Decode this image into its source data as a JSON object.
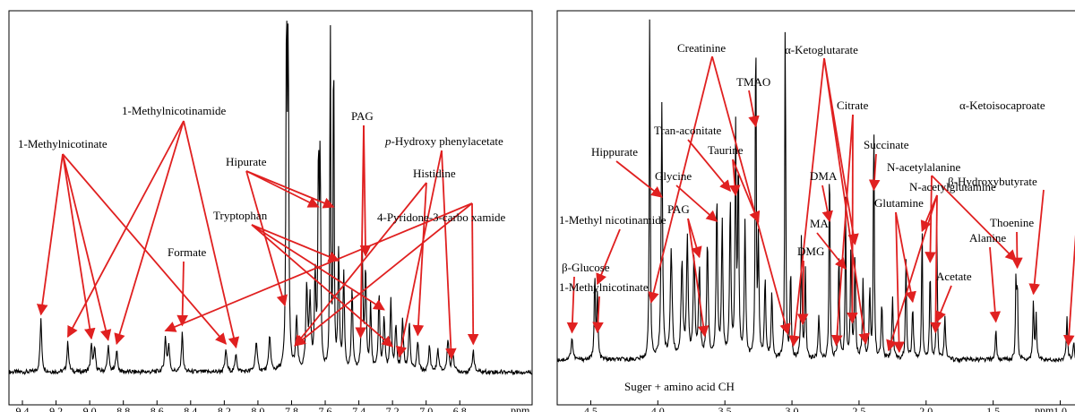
{
  "colors": {
    "spectrum": "#000000",
    "arrow": "#e02020",
    "brace": "#8b1a1a",
    "frame": "#000000"
  },
  "chart_data": [
    {
      "type": "line",
      "xlabel": "ppm",
      "xlim": [
        9.48,
        6.37
      ],
      "ticks": [
        "9.4",
        "9.2",
        "9.0",
        "8.8",
        "8.6",
        "8.4",
        "8.2",
        "8.0",
        "7.8",
        "7.6",
        "7.4",
        "7.2",
        "7.0",
        "6.8"
      ],
      "tick_values": [
        9.4,
        9.2,
        9.0,
        8.8,
        8.6,
        8.4,
        8.2,
        8.0,
        7.8,
        7.6,
        7.4,
        7.2,
        7.0,
        6.8
      ],
      "baseline": 0.035,
      "peaks": [
        [
          9.29,
          0.14,
          0.006
        ],
        [
          9.13,
          0.08,
          0.006
        ],
        [
          8.99,
          0.07,
          0.006
        ],
        [
          8.97,
          0.06,
          0.006
        ],
        [
          8.89,
          0.07,
          0.006
        ],
        [
          8.84,
          0.06,
          0.006
        ],
        [
          8.55,
          0.09,
          0.006
        ],
        [
          8.53,
          0.07,
          0.006
        ],
        [
          8.45,
          0.11,
          0.005
        ],
        [
          8.19,
          0.06,
          0.006
        ],
        [
          8.13,
          0.05,
          0.006
        ],
        [
          8.01,
          0.08,
          0.007
        ],
        [
          7.93,
          0.1,
          0.006
        ],
        [
          7.83,
          0.93,
          0.004
        ],
        [
          7.82,
          0.85,
          0.004
        ],
        [
          7.77,
          0.14,
          0.006
        ],
        [
          7.71,
          0.22,
          0.006
        ],
        [
          7.69,
          0.19,
          0.006
        ],
        [
          7.66,
          0.25,
          0.005
        ],
        [
          7.64,
          0.57,
          0.004
        ],
        [
          7.63,
          0.55,
          0.004
        ],
        [
          7.57,
          0.98,
          0.003
        ],
        [
          7.55,
          0.97,
          0.003
        ],
        [
          7.52,
          0.32,
          0.005
        ],
        [
          7.49,
          0.26,
          0.005
        ],
        [
          7.44,
          0.22,
          0.005
        ],
        [
          7.38,
          0.32,
          0.005
        ],
        [
          7.36,
          0.27,
          0.005
        ],
        [
          7.33,
          0.18,
          0.005
        ],
        [
          7.28,
          0.21,
          0.005
        ],
        [
          7.25,
          0.14,
          0.006
        ],
        [
          7.21,
          0.19,
          0.005
        ],
        [
          7.18,
          0.12,
          0.006
        ],
        [
          7.14,
          0.14,
          0.006
        ],
        [
          7.1,
          0.13,
          0.006
        ],
        [
          7.05,
          0.08,
          0.006
        ],
        [
          6.98,
          0.07,
          0.006
        ],
        [
          6.93,
          0.06,
          0.006
        ],
        [
          6.87,
          0.09,
          0.006
        ],
        [
          6.84,
          0.05,
          0.006
        ],
        [
          6.72,
          0.06,
          0.006
        ]
      ],
      "annotations": [
        {
          "text": "1-Methylnicotinate",
          "targets": [
            9.29,
            8.99,
            8.89,
            8.19
          ]
        },
        {
          "text": "1-Methylnicotinamide",
          "targets": [
            9.13,
            8.84,
            8.13
          ]
        },
        {
          "text": "Formate",
          "targets": [
            8.45
          ]
        },
        {
          "text": "Hipurate",
          "targets": [
            7.84,
            7.55,
            7.64
          ]
        },
        {
          "text": "Tryptophan",
          "targets": [
            7.52,
            7.25,
            7.2
          ]
        },
        {
          "text": "PAG",
          "targets": [
            7.36,
            7.39
          ]
        },
        {
          "text": "p-Hydroxy phenylacetate",
          "italic_prefix": "p",
          "rest": "-Hydroxy phenylacetate",
          "targets": [
            7.16,
            6.85
          ]
        },
        {
          "text": "Histidine",
          "targets": [
            7.78,
            7.05
          ]
        },
        {
          "text": "4-Pyridone-3-carbo xamide",
          "targets": [
            8.55,
            7.78,
            6.72
          ]
        }
      ]
    },
    {
      "type": "line",
      "xlabel": "ppm",
      "xlim": [
        4.75,
        0.85
      ],
      "ticks": [
        "4.5",
        "4.0",
        "3.5",
        "3.0",
        "2.5",
        "2.0",
        "1.5",
        "1.0"
      ],
      "tick_values": [
        4.5,
        4.0,
        3.5,
        3.0,
        2.5,
        2.0,
        1.5,
        1.0
      ],
      "baseline": 0.04,
      "peaks": [
        [
          4.64,
          0.06,
          0.008
        ],
        [
          4.47,
          0.24,
          0.005
        ],
        [
          4.45,
          0.18,
          0.005
        ],
        [
          4.06,
          1.0,
          0.004
        ],
        [
          3.97,
          0.71,
          0.006
        ],
        [
          3.9,
          0.3,
          0.008
        ],
        [
          3.82,
          0.26,
          0.008
        ],
        [
          3.78,
          0.33,
          0.007
        ],
        [
          3.73,
          0.29,
          0.007
        ],
        [
          3.69,
          0.25,
          0.007
        ],
        [
          3.63,
          0.32,
          0.007
        ],
        [
          3.56,
          0.45,
          0.006
        ],
        [
          3.52,
          0.38,
          0.006
        ],
        [
          3.46,
          0.43,
          0.006
        ],
        [
          3.42,
          0.62,
          0.005
        ],
        [
          3.4,
          0.55,
          0.005
        ],
        [
          3.35,
          0.38,
          0.006
        ],
        [
          3.27,
          1.0,
          0.004
        ],
        [
          3.25,
          0.32,
          0.005
        ],
        [
          3.2,
          0.22,
          0.006
        ],
        [
          3.15,
          0.18,
          0.006
        ],
        [
          3.05,
          1.0,
          0.004
        ],
        [
          3.01,
          0.25,
          0.005
        ],
        [
          2.93,
          0.33,
          0.005
        ],
        [
          2.9,
          0.25,
          0.005
        ],
        [
          2.8,
          0.12,
          0.006
        ],
        [
          2.72,
          0.6,
          0.004
        ],
        [
          2.65,
          0.3,
          0.005
        ],
        [
          2.6,
          0.45,
          0.004
        ],
        [
          2.56,
          0.32,
          0.005
        ],
        [
          2.53,
          0.29,
          0.005
        ],
        [
          2.47,
          0.22,
          0.006
        ],
        [
          2.42,
          0.2,
          0.005
        ],
        [
          2.39,
          0.72,
          0.004
        ],
        [
          2.33,
          0.15,
          0.006
        ],
        [
          2.25,
          0.17,
          0.006
        ],
        [
          2.15,
          0.27,
          0.005
        ],
        [
          2.1,
          0.14,
          0.006
        ],
        [
          2.03,
          0.39,
          0.004
        ],
        [
          1.97,
          0.25,
          0.005
        ],
        [
          1.92,
          0.4,
          0.004
        ],
        [
          1.86,
          0.12,
          0.006
        ],
        [
          1.48,
          0.09,
          0.005
        ],
        [
          1.33,
          0.23,
          0.004
        ],
        [
          1.32,
          0.21,
          0.004
        ],
        [
          1.2,
          0.16,
          0.005
        ],
        [
          1.18,
          0.12,
          0.005
        ],
        [
          0.95,
          0.12,
          0.005
        ],
        [
          0.9,
          0.05,
          0.006
        ]
      ],
      "annotations": [
        {
          "text": "Creatinine",
          "targets": [
            4.05,
            3.03
          ]
        },
        {
          "text": "α-Ketoglutarate",
          "targets": [
            2.99,
            2.45,
            2.53
          ]
        },
        {
          "text": "TMAO",
          "targets": [
            3.27
          ]
        },
        {
          "text": "Hippurate",
          "targets": [
            3.97
          ]
        },
        {
          "text": "Tran-aconitate",
          "targets": [
            3.46
          ]
        },
        {
          "text": "Taurine",
          "targets": [
            3.42,
            3.25
          ]
        },
        {
          "text": "Glycine",
          "targets": [
            3.56
          ]
        },
        {
          "text": "PAG",
          "targets": [
            3.65,
            3.69
          ]
        },
        {
          "text": "Citrate",
          "targets": [
            2.67,
            2.55
          ]
        },
        {
          "text": "Succinate",
          "targets": [
            2.39
          ]
        },
        {
          "text": "DMA",
          "targets": [
            2.72
          ]
        },
        {
          "text": "MA",
          "targets": [
            2.6
          ]
        },
        {
          "text": "DMG",
          "targets": [
            2.92
          ]
        },
        {
          "text": "N-acetylalanine",
          "targets": [
            1.97,
            1.33
          ]
        },
        {
          "text": "N-acetylglutamine",
          "targets": [
            2.28,
            2.03,
            1.93
          ]
        },
        {
          "text": "Glutamine",
          "targets": [
            2.2,
            2.1
          ]
        },
        {
          "text": "Acetate",
          "targets": [
            1.92
          ]
        },
        {
          "text": "Alanine",
          "targets": [
            1.48
          ]
        },
        {
          "text": "Thoenine",
          "targets": [
            1.32
          ]
        },
        {
          "text": "β-Hydroxybutyrate",
          "targets": [
            1.2
          ]
        },
        {
          "text": "α-Ketoisocaproate",
          "targets": [
            0.94
          ]
        },
        {
          "text": "1-Methyl nicotinamide",
          "targets": [
            4.45
          ]
        },
        {
          "text": "β-Glucose",
          "targets": [
            4.64
          ]
        },
        {
          "text": "1-Methylnicotinate",
          "targets": [
            4.45
          ]
        },
        {
          "text": "Suger + amino acid CH",
          "brace_range": [
            4.15,
            3.45
          ]
        }
      ]
    }
  ]
}
